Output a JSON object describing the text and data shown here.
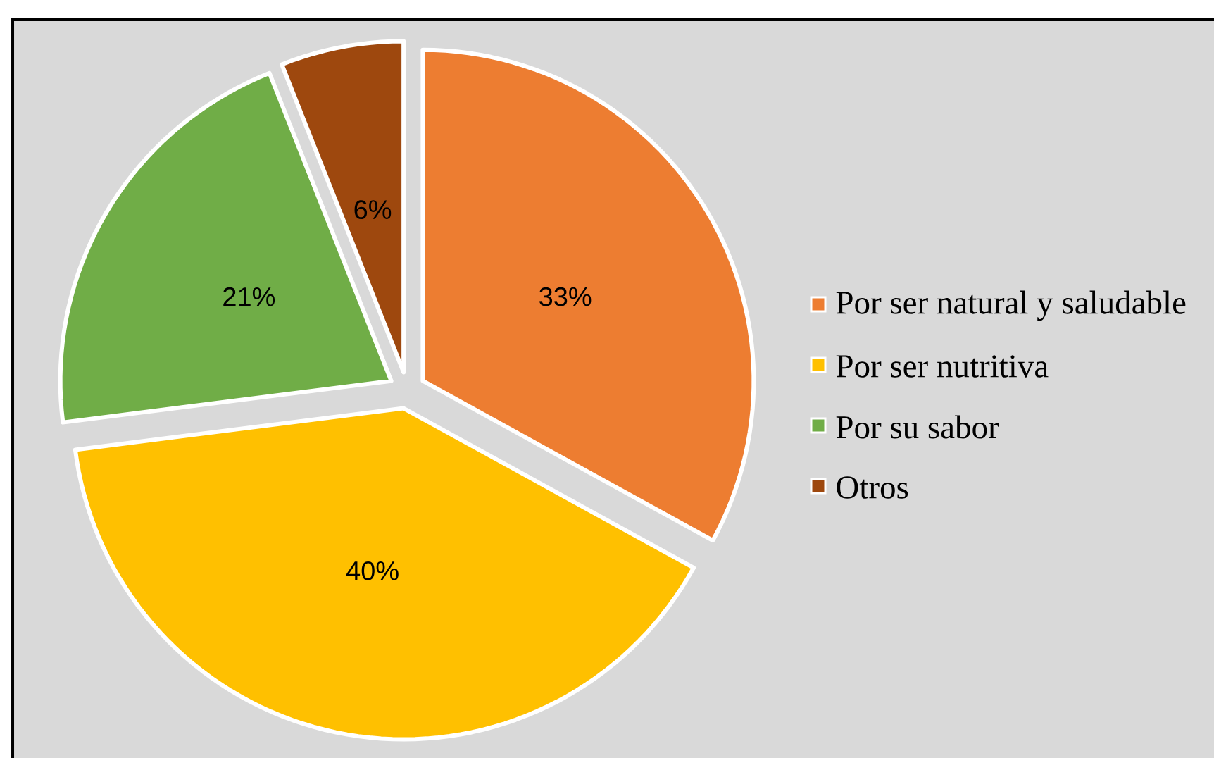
{
  "chart_data": {
    "type": "pie",
    "categories": [
      "Por ser natural y saludable",
      "Por ser nutritiva",
      "Por su sabor",
      "Otros"
    ],
    "values": [
      33,
      40,
      21,
      6
    ],
    "colors": [
      "#ed7d31",
      "#ffc000",
      "#70ad47",
      "#9e480e"
    ],
    "value_labels": [
      "33%",
      "40%",
      "21%",
      "6%"
    ],
    "legend": "right"
  }
}
